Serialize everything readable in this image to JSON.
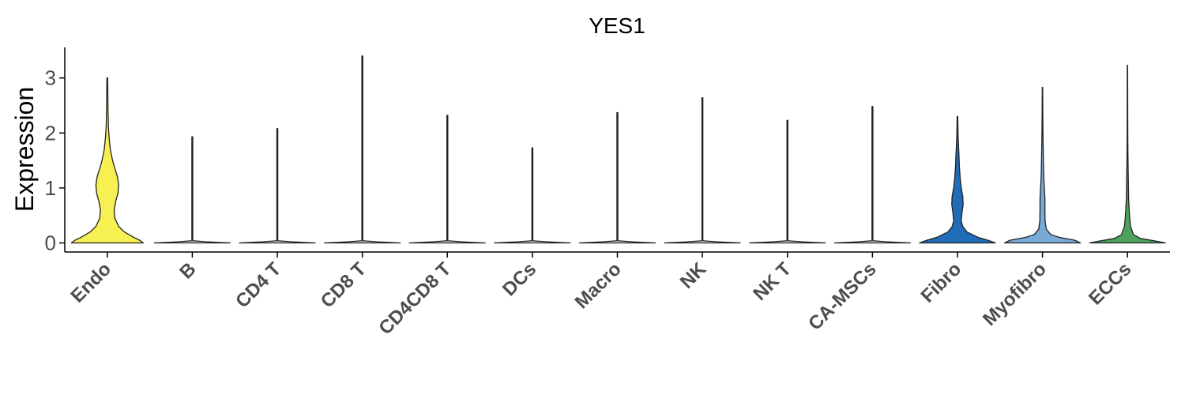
{
  "chart_data": {
    "type": "violin",
    "title": "YES1",
    "xlabel": "",
    "ylabel": "Expression",
    "ylim": [
      -0.18,
      3.6
    ],
    "yticks": [
      0,
      1,
      2,
      3
    ],
    "grid": false,
    "legend": "none",
    "categories": [
      "Endo",
      "B",
      "CD4 T",
      "CD8 T",
      "CD4CD8 T",
      "DCs",
      "Macro",
      "NK",
      "NK T",
      "CA-MSCs",
      "Fibro",
      "Myofibro",
      "ECCs"
    ],
    "series": [
      {
        "category": "Endo",
        "color": "#f7f052",
        "max": 3.0,
        "density": [
          [
            0,
            0.95
          ],
          [
            0.05,
            0.85
          ],
          [
            0.1,
            0.7
          ],
          [
            0.2,
            0.45
          ],
          [
            0.3,
            0.3
          ],
          [
            0.45,
            0.2
          ],
          [
            0.6,
            0.18
          ],
          [
            0.75,
            0.22
          ],
          [
            0.9,
            0.28
          ],
          [
            1.05,
            0.3
          ],
          [
            1.2,
            0.27
          ],
          [
            1.35,
            0.2
          ],
          [
            1.5,
            0.14
          ],
          [
            1.7,
            0.08
          ],
          [
            1.9,
            0.05
          ],
          [
            2.1,
            0.03
          ],
          [
            2.4,
            0.02
          ],
          [
            2.7,
            0.015
          ],
          [
            3.0,
            0.01
          ]
        ]
      },
      {
        "category": "B",
        "color": "#d8d8d8",
        "max": 1.93,
        "density": [
          [
            0,
            1.0
          ],
          [
            0.02,
            0.4
          ],
          [
            0.04,
            0.012
          ],
          [
            1.93,
            0.012
          ]
        ]
      },
      {
        "category": "CD4 T",
        "color": "#d8d8d8",
        "max": 2.08,
        "density": [
          [
            0,
            1.0
          ],
          [
            0.02,
            0.4
          ],
          [
            0.04,
            0.012
          ],
          [
            2.08,
            0.012
          ]
        ]
      },
      {
        "category": "CD8 T",
        "color": "#d8d8d8",
        "max": 3.4,
        "density": [
          [
            0,
            1.0
          ],
          [
            0.02,
            0.4
          ],
          [
            0.04,
            0.012
          ],
          [
            3.4,
            0.012
          ]
        ]
      },
      {
        "category": "CD4CD8 T",
        "color": "#d8d8d8",
        "max": 2.32,
        "density": [
          [
            0,
            1.0
          ],
          [
            0.02,
            0.4
          ],
          [
            0.04,
            0.012
          ],
          [
            2.32,
            0.012
          ]
        ]
      },
      {
        "category": "DCs",
        "color": "#d8d8d8",
        "max": 1.73,
        "density": [
          [
            0,
            1.0
          ],
          [
            0.02,
            0.4
          ],
          [
            0.04,
            0.012
          ],
          [
            1.73,
            0.012
          ]
        ]
      },
      {
        "category": "Macro",
        "color": "#d8d8d8",
        "max": 2.37,
        "density": [
          [
            0,
            1.0
          ],
          [
            0.02,
            0.4
          ],
          [
            0.04,
            0.012
          ],
          [
            2.37,
            0.012
          ]
        ]
      },
      {
        "category": "NK",
        "color": "#d8d8d8",
        "max": 2.64,
        "density": [
          [
            0,
            1.0
          ],
          [
            0.02,
            0.4
          ],
          [
            0.04,
            0.012
          ],
          [
            2.64,
            0.012
          ]
        ]
      },
      {
        "category": "NK T",
        "color": "#d8d8d8",
        "max": 2.23,
        "density": [
          [
            0,
            1.0
          ],
          [
            0.02,
            0.4
          ],
          [
            0.04,
            0.012
          ],
          [
            2.23,
            0.012
          ]
        ]
      },
      {
        "category": "CA-MSCs",
        "color": "#d8d8d8",
        "max": 2.48,
        "density": [
          [
            0,
            1.0
          ],
          [
            0.02,
            0.4
          ],
          [
            0.04,
            0.012
          ],
          [
            2.48,
            0.012
          ]
        ]
      },
      {
        "category": "Fibro",
        "color": "#1f6cb8",
        "max": 2.3,
        "density": [
          [
            0,
            1.0
          ],
          [
            0.05,
            0.8
          ],
          [
            0.1,
            0.55
          ],
          [
            0.2,
            0.25
          ],
          [
            0.3,
            0.14
          ],
          [
            0.4,
            0.1
          ],
          [
            0.55,
            0.12
          ],
          [
            0.7,
            0.15
          ],
          [
            0.85,
            0.14
          ],
          [
            1.0,
            0.1
          ],
          [
            1.2,
            0.07
          ],
          [
            1.4,
            0.05
          ],
          [
            1.6,
            0.04
          ],
          [
            1.8,
            0.025
          ],
          [
            2.0,
            0.015
          ],
          [
            2.3,
            0.008
          ]
        ]
      },
      {
        "category": "Myofibro",
        "color": "#77a9d9",
        "max": 2.83,
        "density": [
          [
            0,
            1.0
          ],
          [
            0.05,
            0.85
          ],
          [
            0.1,
            0.45
          ],
          [
            0.15,
            0.22
          ],
          [
            0.25,
            0.1
          ],
          [
            0.4,
            0.07
          ],
          [
            0.6,
            0.065
          ],
          [
            0.8,
            0.065
          ],
          [
            1.0,
            0.05
          ],
          [
            1.2,
            0.035
          ],
          [
            1.5,
            0.025
          ],
          [
            1.8,
            0.018
          ],
          [
            2.1,
            0.012
          ],
          [
            2.5,
            0.008
          ],
          [
            2.83,
            0.005
          ]
        ]
      },
      {
        "category": "ECCs",
        "color": "#4ea35b",
        "max": 3.23,
        "density": [
          [
            0,
            1.0
          ],
          [
            0.04,
            0.7
          ],
          [
            0.08,
            0.35
          ],
          [
            0.15,
            0.16
          ],
          [
            0.3,
            0.08
          ],
          [
            0.45,
            0.06
          ],
          [
            0.6,
            0.045
          ],
          [
            0.8,
            0.03
          ],
          [
            1.0,
            0.025
          ],
          [
            1.3,
            0.018
          ],
          [
            1.6,
            0.012
          ],
          [
            2.0,
            0.008
          ],
          [
            2.5,
            0.006
          ],
          [
            3.23,
            0.004
          ]
        ]
      }
    ]
  }
}
